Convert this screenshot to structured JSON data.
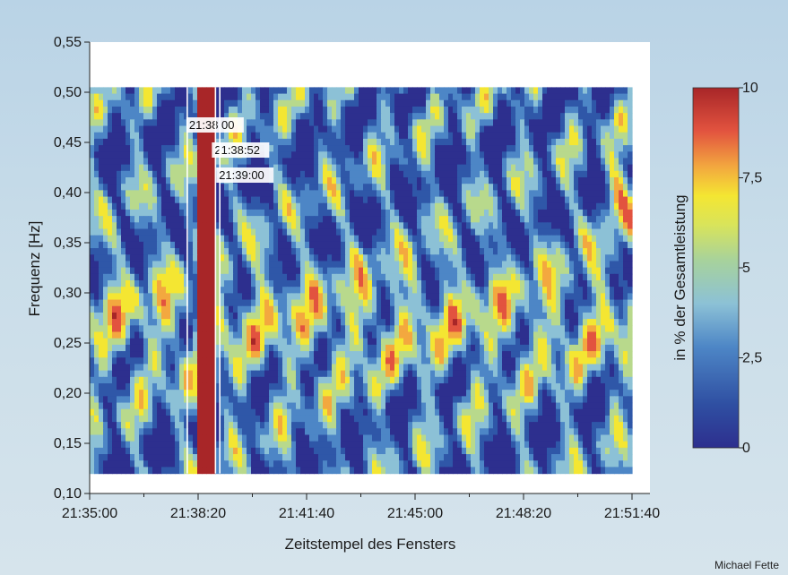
{
  "chart_data": {
    "type": "heatmap",
    "title": "",
    "xlabel": "Zeitstempel des Fensters",
    "ylabel": "Frequenz [Hz]",
    "colorbar_label": "in % der Gesamtleistung",
    "x_ticks": [
      "21:35:00",
      "21:38:20",
      "21:41:40",
      "21:45:00",
      "21:48:20",
      "21:51:40"
    ],
    "x_range": [
      "21:35:00",
      "21:51:40"
    ],
    "y_ticks": [
      "0,10",
      "0,15",
      "0,20",
      "0,25",
      "0,30",
      "0,35",
      "0,40",
      "0,45",
      "0,50",
      "0,55"
    ],
    "ylim": [
      0.1,
      0.55
    ],
    "data_y_range": [
      0.12,
      0.505
    ],
    "color_range": [
      0,
      10
    ],
    "colorbar_ticks": [
      "0",
      "2,5",
      "5",
      "7,5",
      "10"
    ],
    "colors": [
      "#2d2f8e",
      "#2f57a8",
      "#4d86c6",
      "#8cc1d6",
      "#b8d98c",
      "#f4e632",
      "#f3a83f",
      "#e2533f",
      "#a82628"
    ],
    "grid": false,
    "annotations": [
      {
        "label": "21:38:00",
        "time": "21:38:00"
      },
      {
        "label": "21:38:52",
        "time": "21:38:52"
      },
      {
        "label": "21:39:00",
        "time": "21:39:00"
      }
    ]
  },
  "credit": "Michael Fette"
}
